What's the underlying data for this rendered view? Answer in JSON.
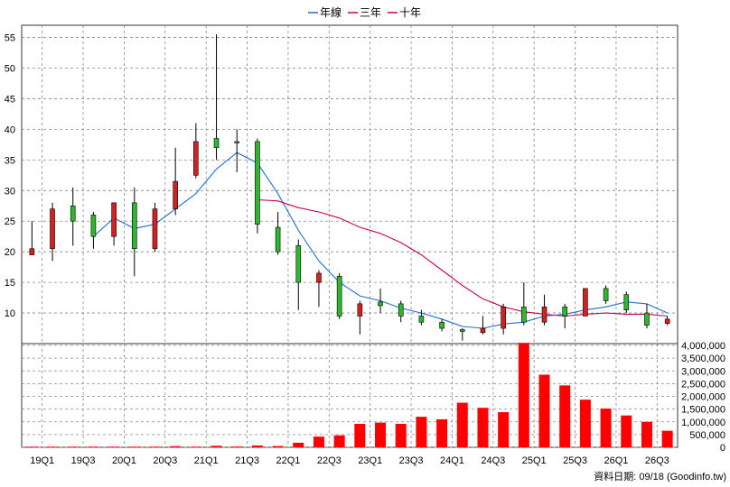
{
  "legend": {
    "items": [
      {
        "label": "年線",
        "color": "#1f6fd1"
      },
      {
        "label": "三年",
        "color": "#cc0055"
      },
      {
        "label": "十年",
        "color": "#cc0055"
      }
    ]
  },
  "footer": {
    "text": "資料日期: 09/18  (Goodinfo.tw)"
  },
  "colors": {
    "up": "#d42020",
    "down": "#2db82d",
    "volume": "#ff0000",
    "grid": "#888888"
  },
  "chart_data": [
    {
      "type": "candlestick",
      "y_ticks": [
        10,
        15,
        20,
        25,
        30,
        35,
        40,
        45,
        50,
        55
      ],
      "ylim": [
        5,
        57
      ],
      "x_tick_labels": [
        "19Q1",
        "19Q3",
        "20Q1",
        "20Q3",
        "21Q1",
        "21Q3",
        "22Q1",
        "22Q3",
        "23Q1",
        "23Q3",
        "24Q1",
        "24Q3",
        "25Q1",
        "25Q3",
        "26Q1",
        "26Q3"
      ],
      "x_tick_positions": [
        1,
        3,
        5,
        7,
        9,
        11,
        13,
        15,
        17,
        19,
        21,
        23,
        25,
        27,
        29,
        31
      ],
      "grid": true,
      "candles": [
        {
          "q": 0,
          "open": 19.5,
          "close": 20.5,
          "high": 25.0,
          "low": 19.5
        },
        {
          "q": 1,
          "open": 20.5,
          "close": 27.0,
          "high": 28.0,
          "low": 18.5
        },
        {
          "q": 2,
          "open": 27.5,
          "close": 25.0,
          "high": 30.5,
          "low": 21.0
        },
        {
          "q": 3,
          "open": 26.0,
          "close": 22.5,
          "high": 26.5,
          "low": 20.5
        },
        {
          "q": 4,
          "open": 22.5,
          "close": 28.0,
          "high": 28.0,
          "low": 21.0
        },
        {
          "q": 5,
          "open": 28.0,
          "close": 20.5,
          "high": 30.5,
          "low": 16.0
        },
        {
          "q": 6,
          "open": 20.5,
          "close": 27.0,
          "high": 28.0,
          "low": 20.0
        },
        {
          "q": 7,
          "open": 27.0,
          "close": 31.5,
          "high": 37.0,
          "low": 26.0
        },
        {
          "q": 8,
          "open": 32.5,
          "close": 38.0,
          "high": 41.0,
          "low": 32.0
        },
        {
          "q": 9,
          "open": 38.5,
          "close": 37.0,
          "high": 55.5,
          "low": 35.0
        },
        {
          "q": 10,
          "open": 38.0,
          "close": 37.8,
          "high": 40.0,
          "low": 33.0
        },
        {
          "q": 11,
          "open": 38.0,
          "close": 24.5,
          "high": 38.5,
          "low": 23.0
        },
        {
          "q": 12,
          "open": 24.0,
          "close": 20.0,
          "high": 26.5,
          "low": 19.5
        },
        {
          "q": 13,
          "open": 21.0,
          "close": 15.0,
          "high": 22.0,
          "low": 10.5
        },
        {
          "q": 14,
          "open": 15.0,
          "close": 16.5,
          "high": 17.0,
          "low": 11.0
        },
        {
          "q": 15,
          "open": 16.0,
          "close": 9.5,
          "high": 16.5,
          "low": 9.0
        },
        {
          "q": 16,
          "open": 9.5,
          "close": 11.5,
          "high": 12.0,
          "low": 6.5
        },
        {
          "q": 17,
          "open": 11.8,
          "close": 11.2,
          "high": 14.0,
          "low": 10.0
        },
        {
          "q": 18,
          "open": 11.5,
          "close": 9.5,
          "high": 12.0,
          "low": 8.5
        },
        {
          "q": 19,
          "open": 9.5,
          "close": 8.5,
          "high": 10.5,
          "low": 8.0
        },
        {
          "q": 20,
          "open": 8.5,
          "close": 7.5,
          "high": 9.0,
          "low": 7.0
        },
        {
          "q": 21,
          "open": 7.3,
          "close": 7.0,
          "high": 7.5,
          "low": 5.5
        },
        {
          "q": 22,
          "open": 6.8,
          "close": 7.5,
          "high": 9.5,
          "low": 6.5
        },
        {
          "q": 23,
          "open": 7.5,
          "close": 11.0,
          "high": 11.5,
          "low": 6.5
        },
        {
          "q": 24,
          "open": 11.0,
          "close": 8.5,
          "high": 15.0,
          "low": 8.0
        },
        {
          "q": 25,
          "open": 8.5,
          "close": 11.0,
          "high": 13.0,
          "low": 8.0
        },
        {
          "q": 26,
          "open": 11.0,
          "close": 9.5,
          "high": 11.5,
          "low": 7.5
        },
        {
          "q": 27,
          "open": 9.5,
          "close": 14.0,
          "high": 14.0,
          "low": 9.5
        },
        {
          "q": 28,
          "open": 14.0,
          "close": 12.0,
          "high": 14.5,
          "low": 11.5
        },
        {
          "q": 29,
          "open": 13.0,
          "close": 10.5,
          "high": 13.5,
          "low": 10.0
        },
        {
          "q": 30,
          "open": 10.0,
          "close": 8.0,
          "high": 11.5,
          "low": 7.5
        },
        {
          "q": 31,
          "open": 8.3,
          "close": 9.0,
          "high": 9.5,
          "low": 8.0
        }
      ],
      "series": [
        {
          "name": "年線",
          "color": "#1f6fd1",
          "points": [
            [
              3,
              22.5
            ],
            [
              4,
              25.5
            ],
            [
              5,
              23.8
            ],
            [
              6,
              24.5
            ],
            [
              7,
              27.0
            ],
            [
              8,
              29.5
            ],
            [
              9,
              33.5
            ],
            [
              10,
              36.2
            ],
            [
              11,
              34.5
            ],
            [
              12,
              29.5
            ],
            [
              13,
              23.5
            ],
            [
              14,
              18.5
            ],
            [
              15,
              15.0
            ],
            [
              16,
              12.8
            ],
            [
              17,
              12.0
            ],
            [
              18,
              10.8
            ],
            [
              19,
              10.0
            ],
            [
              20,
              9.0
            ],
            [
              21,
              7.8
            ],
            [
              22,
              7.5
            ],
            [
              23,
              8.2
            ],
            [
              24,
              8.5
            ],
            [
              25,
              9.5
            ],
            [
              26,
              9.8
            ],
            [
              27,
              10.5
            ],
            [
              28,
              11.0
            ],
            [
              29,
              11.8
            ],
            [
              30,
              11.5
            ],
            [
              31,
              10.0
            ]
          ]
        },
        {
          "name": "十年",
          "color": "#cc0055",
          "points": [
            [
              11,
              28.5
            ],
            [
              12,
              28.3
            ],
            [
              13,
              27.2
            ],
            [
              14,
              26.5
            ],
            [
              15,
              25.5
            ],
            [
              16,
              24.0
            ],
            [
              17,
              23.0
            ],
            [
              18,
              21.5
            ],
            [
              19,
              19.5
            ],
            [
              20,
              17.0
            ],
            [
              21,
              14.5
            ],
            [
              22,
              12.3
            ],
            [
              23,
              11.0
            ],
            [
              24,
              10.2
            ],
            [
              25,
              9.8
            ],
            [
              26,
              9.5
            ],
            [
              27,
              9.8
            ],
            [
              28,
              10.0
            ],
            [
              29,
              9.8
            ],
            [
              30,
              9.8
            ],
            [
              31,
              9.5
            ]
          ]
        }
      ]
    },
    {
      "type": "bar",
      "y_ticks": [
        0,
        500000,
        1000000,
        1500000,
        2000000,
        2500000,
        3000000,
        3500000,
        4000000
      ],
      "y_tick_labels": [
        "0",
        "500,000",
        "1,000,000",
        "1,500,000",
        "2,000,000",
        "2,500,000",
        "3,000,000",
        "3,500,000",
        "4,000,000"
      ],
      "ylim": [
        0,
        4000000
      ],
      "values": [
        25000,
        25000,
        25000,
        25000,
        25000,
        25000,
        25000,
        45000,
        25000,
        60000,
        30000,
        70000,
        50000,
        180000,
        420000,
        470000,
        920000,
        970000,
        920000,
        1200000,
        1100000,
        1750000,
        1550000,
        1380000,
        4100000,
        2850000,
        2430000,
        1870000,
        1520000,
        1250000,
        1000000,
        650000
      ]
    }
  ]
}
